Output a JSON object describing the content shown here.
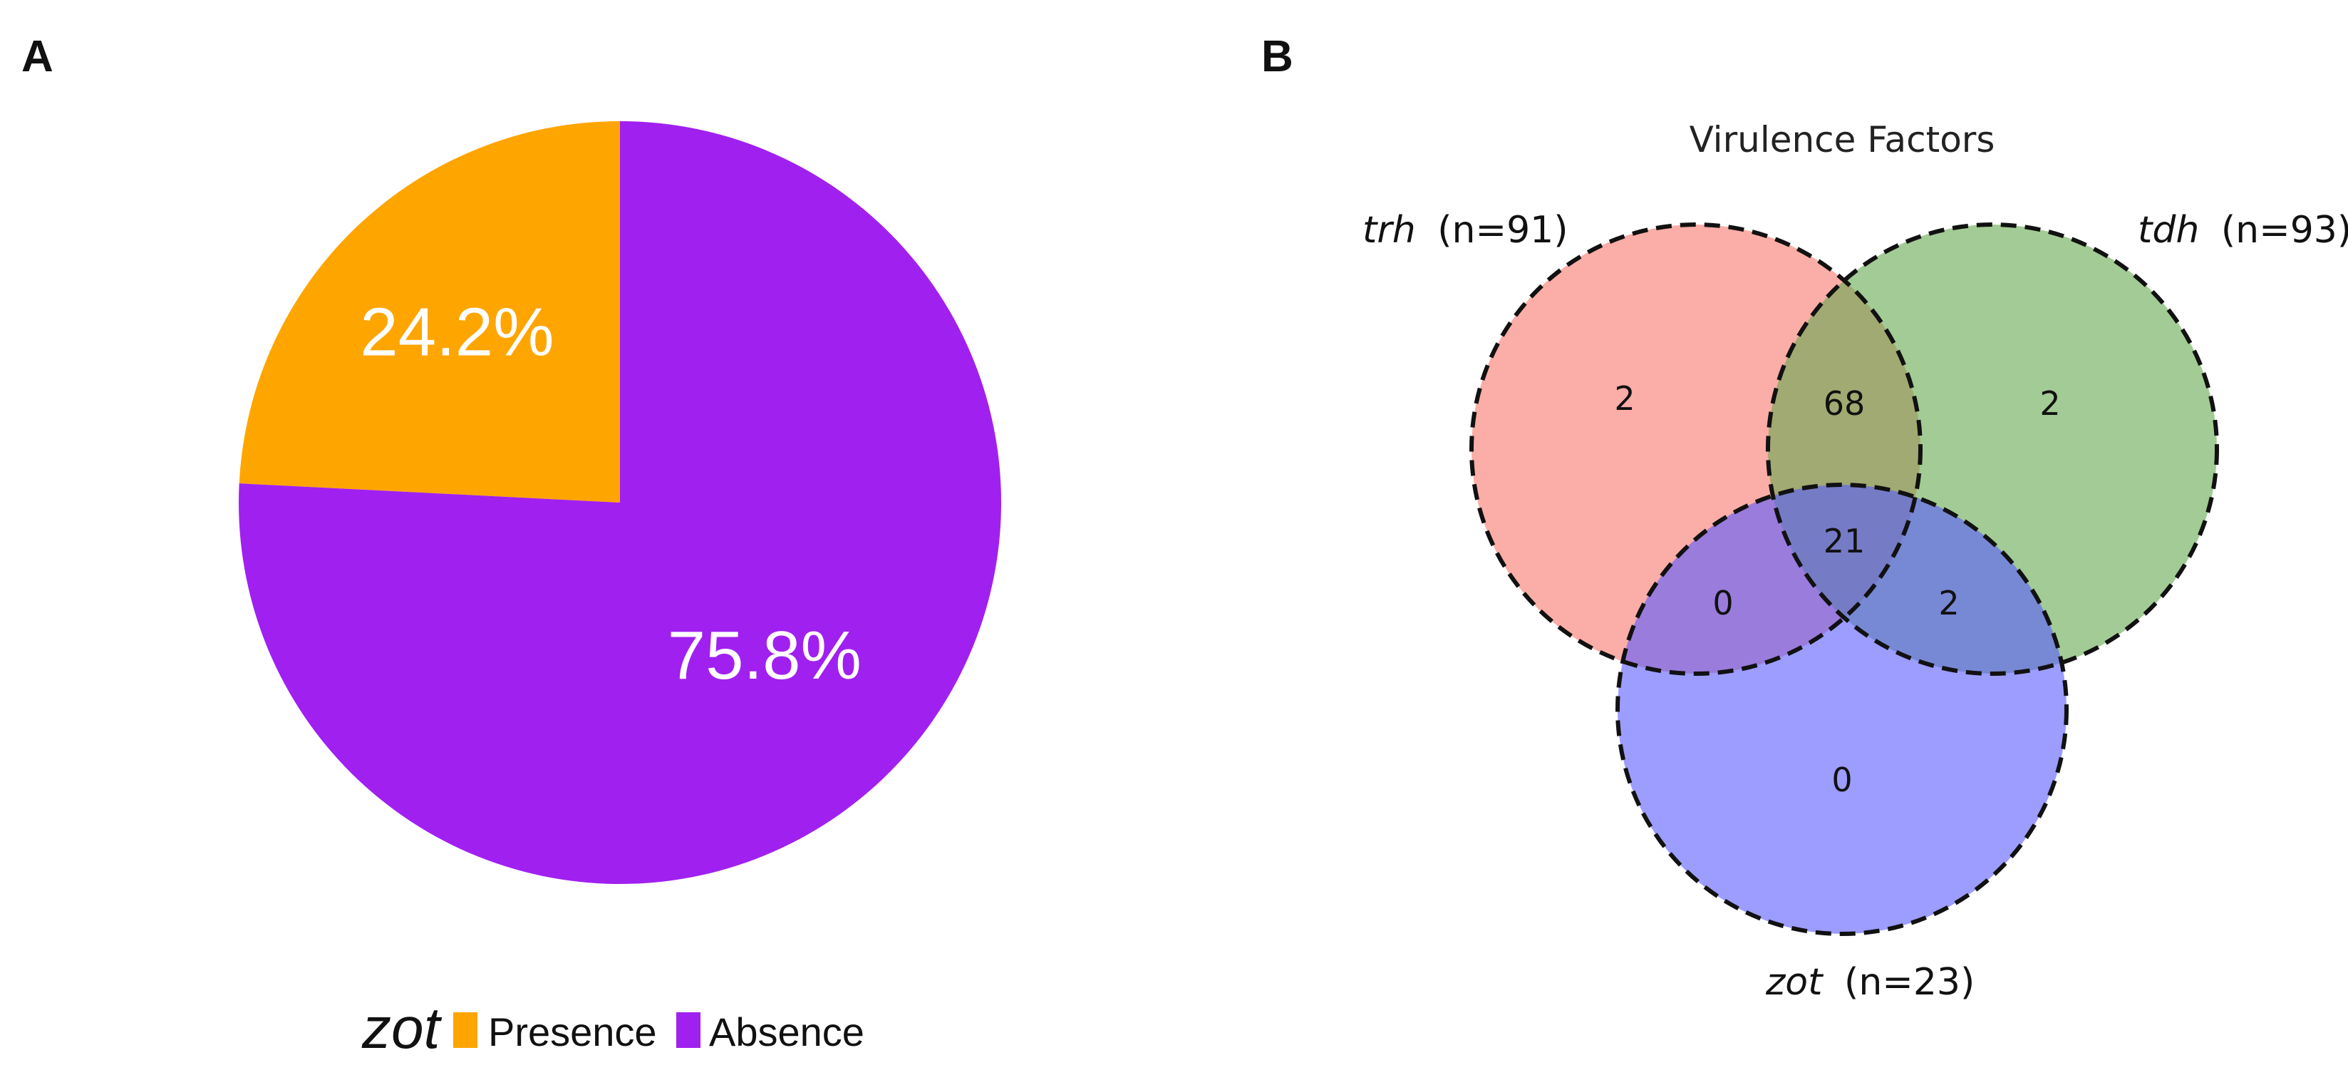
{
  "panels": {
    "a_label": "A",
    "b_label": "B"
  },
  "chart_data": [
    {
      "type": "pie",
      "slices": [
        {
          "name": "Presence",
          "value": 24.2,
          "label": "24.2%",
          "color": "#ffa500"
        },
        {
          "name": "Absence",
          "value": 75.8,
          "label": "75.8%",
          "color": "#a020f0"
        }
      ],
      "legend": {
        "title": "zot",
        "items": [
          "Presence",
          "Absence"
        ],
        "placement": "bottom"
      }
    },
    {
      "type": "venn",
      "title": "Virulence Factors",
      "sets": [
        {
          "name": "trh",
          "n_text": "(n=91)",
          "color": "#f8766d"
        },
        {
          "name": "tdh",
          "n_text": "(n=93)",
          "color": "#65a84e"
        },
        {
          "name": "zot",
          "n_text": "(n=23)",
          "color": "#5a5cff"
        }
      ],
      "regions": {
        "trh_only": "2",
        "tdh_only": "2",
        "zot_only": "0",
        "trh_tdh": "68",
        "trh_zot": "0",
        "tdh_zot": "2",
        "all": "21"
      }
    }
  ]
}
